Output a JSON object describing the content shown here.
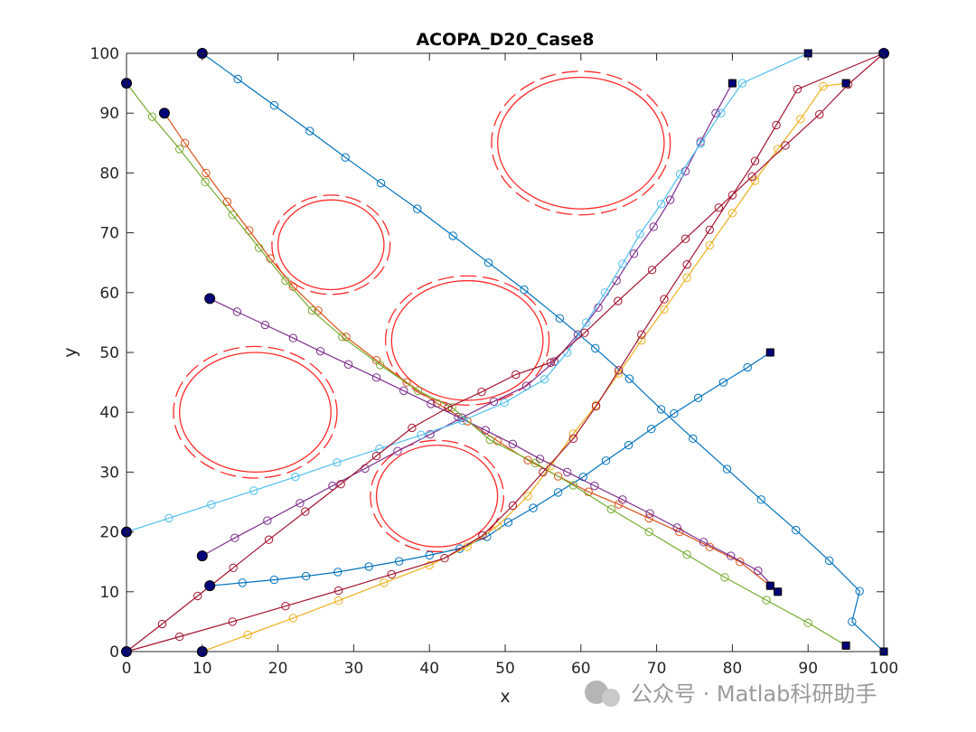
{
  "chart_data": {
    "type": "line",
    "title": "ACOPA_D20_Case8",
    "xlabel": "x",
    "ylabel": "y",
    "xlim": [
      0,
      100
    ],
    "ylim": [
      0,
      100
    ],
    "xticks": [
      0,
      10,
      20,
      30,
      40,
      50,
      60,
      70,
      80,
      90,
      100
    ],
    "yticks": [
      0,
      10,
      20,
      30,
      40,
      50,
      60,
      70,
      80,
      90,
      100
    ],
    "grid": false,
    "start_marker": "filled-circle",
    "end_marker": "filled-square",
    "obstacles": [
      {
        "cx": 60,
        "cy": 85,
        "rx": 11,
        "ry": 11,
        "rx_outer": 11.8,
        "ry_outer": 12
      },
      {
        "cx": 27,
        "cy": 68,
        "rx": 7,
        "ry": 7.5,
        "rx_outer": 7.8,
        "ry_outer": 8.3
      },
      {
        "cx": 45,
        "cy": 52,
        "rx": 10,
        "ry": 10,
        "rx_outer": 10.8,
        "ry_outer": 10.8
      },
      {
        "cx": 17,
        "cy": 40,
        "rx": 10,
        "ry": 10,
        "rx_outer": 10.8,
        "ry_outer": 11
      },
      {
        "cx": 41,
        "cy": 26,
        "rx": 8,
        "ry": 8.5,
        "rx_outer": 8.8,
        "ry_outer": 9.3
      }
    ],
    "obstacle_color": "#ff2a2a",
    "series": [
      {
        "color": "#0072bd",
        "points": [
          [
            10,
            100
          ],
          [
            14.7,
            95.7
          ],
          [
            19.5,
            91.3
          ],
          [
            24.2,
            87
          ],
          [
            28.9,
            82.6
          ],
          [
            33.6,
            78.3
          ],
          [
            38.4,
            74
          ],
          [
            43.1,
            69.5
          ],
          [
            47.8,
            65
          ],
          [
            52.5,
            60.5
          ],
          [
            57.2,
            55.7
          ],
          [
            61.9,
            50.7
          ],
          [
            66.4,
            45.6
          ],
          [
            70.6,
            40.5
          ],
          [
            74.8,
            35.6
          ],
          [
            79.3,
            30.5
          ],
          [
            83.8,
            25.4
          ],
          [
            88.4,
            20.3
          ],
          [
            92.8,
            15.2
          ],
          [
            96.8,
            10.1
          ],
          [
            95.8,
            5
          ],
          [
            100,
            0
          ]
        ]
      },
      {
        "color": "#0072bd",
        "points": [
          [
            11,
            11
          ],
          [
            15.3,
            11.5
          ],
          [
            19.5,
            12
          ],
          [
            23.7,
            12.6
          ],
          [
            27.9,
            13.3
          ],
          [
            32,
            14.2
          ],
          [
            36,
            15.1
          ],
          [
            40,
            16.1
          ],
          [
            44,
            17.2
          ],
          [
            47.6,
            19.2
          ],
          [
            50.4,
            21.6
          ],
          [
            53.7,
            24
          ],
          [
            57,
            26.6
          ],
          [
            60.3,
            29.2
          ],
          [
            63.3,
            31.9
          ],
          [
            66.3,
            34.5
          ],
          [
            69.3,
            37.2
          ],
          [
            72.3,
            39.8
          ],
          [
            75.5,
            42.4
          ],
          [
            78.8,
            45
          ],
          [
            82,
            47.5
          ],
          [
            85,
            50
          ]
        ]
      },
      {
        "color": "#d95319",
        "points": [
          [
            5,
            90
          ],
          [
            7.7,
            85
          ],
          [
            10.5,
            80
          ],
          [
            13.3,
            75.2
          ],
          [
            16.2,
            70.4
          ],
          [
            19,
            65.7
          ],
          [
            22,
            61
          ],
          [
            25.3,
            57
          ],
          [
            29,
            52.6
          ],
          [
            33,
            48.7
          ],
          [
            37,
            45
          ],
          [
            41,
            41.5
          ],
          [
            45,
            38.5
          ],
          [
            49,
            35.2
          ],
          [
            53,
            32
          ],
          [
            57,
            29.3
          ],
          [
            61,
            26.7
          ],
          [
            65,
            24.6
          ],
          [
            69,
            22.3
          ],
          [
            73,
            20
          ],
          [
            77,
            17.5
          ],
          [
            81,
            15
          ],
          [
            85,
            11
          ]
        ]
      },
      {
        "color": "#edb120",
        "points": [
          [
            10,
            0
          ],
          [
            16,
            2.8
          ],
          [
            22,
            5.6
          ],
          [
            28,
            8.5
          ],
          [
            34,
            11.5
          ],
          [
            40,
            14.4
          ],
          [
            45,
            17.5
          ],
          [
            49,
            21
          ],
          [
            53,
            26
          ],
          [
            56,
            31
          ],
          [
            59,
            36.4
          ],
          [
            62,
            41.2
          ],
          [
            65,
            46.5
          ],
          [
            68,
            52
          ],
          [
            71,
            57.2
          ],
          [
            74,
            62.5
          ],
          [
            77,
            67.9
          ],
          [
            80,
            73.3
          ],
          [
            83,
            78.7
          ],
          [
            86,
            84
          ],
          [
            89,
            89
          ],
          [
            92,
            94.5
          ],
          [
            95,
            95
          ]
        ]
      },
      {
        "color": "#7e2f8e",
        "points": [
          [
            11,
            59
          ],
          [
            14.6,
            56.8
          ],
          [
            18.3,
            54.6
          ],
          [
            22,
            52.4
          ],
          [
            25.6,
            50.2
          ],
          [
            29.3,
            48
          ],
          [
            33,
            45.8
          ],
          [
            36.6,
            43.6
          ],
          [
            40.2,
            41.4
          ],
          [
            43.8,
            39.2
          ],
          [
            47.4,
            37
          ],
          [
            51,
            34.7
          ],
          [
            54.6,
            32.2
          ],
          [
            58.2,
            30
          ],
          [
            61.8,
            27.7
          ],
          [
            65.5,
            25.4
          ],
          [
            69.1,
            23.1
          ],
          [
            72.7,
            20.7
          ],
          [
            76.2,
            18.3
          ],
          [
            79.8,
            16
          ],
          [
            83.4,
            13.5
          ],
          [
            86,
            10
          ]
        ]
      },
      {
        "color": "#7e2f8e",
        "points": [
          [
            10,
            16
          ],
          [
            14.3,
            19
          ],
          [
            18.6,
            21.9
          ],
          [
            22.9,
            24.8
          ],
          [
            27.2,
            27.7
          ],
          [
            31.5,
            30.6
          ],
          [
            35.8,
            33.5
          ],
          [
            40.1,
            36.3
          ],
          [
            44.3,
            39.1
          ],
          [
            48.5,
            41.8
          ],
          [
            52.8,
            44.4
          ],
          [
            56.5,
            48.5
          ],
          [
            59.6,
            53
          ],
          [
            62.3,
            57.5
          ],
          [
            64.7,
            62
          ],
          [
            67,
            66.5
          ],
          [
            69.6,
            71
          ],
          [
            71.8,
            75.5
          ],
          [
            73.8,
            80.3
          ],
          [
            75.8,
            85.2
          ],
          [
            77.8,
            90
          ],
          [
            80,
            95
          ]
        ]
      },
      {
        "color": "#77ac30",
        "points": [
          [
            0,
            95
          ],
          [
            3.4,
            89.4
          ],
          [
            7,
            84
          ],
          [
            10.4,
            78.5
          ],
          [
            14,
            73
          ],
          [
            17.5,
            67.5
          ],
          [
            21,
            62
          ],
          [
            24.5,
            57
          ],
          [
            28.5,
            52.6
          ],
          [
            33.5,
            47.9
          ],
          [
            38.5,
            43.6
          ],
          [
            43,
            40.8
          ],
          [
            48,
            35.4
          ],
          [
            54,
            31.5
          ],
          [
            59,
            27.8
          ],
          [
            64,
            23.8
          ],
          [
            69,
            20
          ],
          [
            74,
            16.2
          ],
          [
            79,
            12.4
          ],
          [
            84.5,
            8.6
          ],
          [
            90,
            4.8
          ],
          [
            95,
            1
          ]
        ]
      },
      {
        "color": "#4dbeee",
        "points": [
          [
            0,
            20
          ],
          [
            5.6,
            22.3
          ],
          [
            11.2,
            24.6
          ],
          [
            16.8,
            26.9
          ],
          [
            22.3,
            29.2
          ],
          [
            27.8,
            31.6
          ],
          [
            33.4,
            33.9
          ],
          [
            38.9,
            36.2
          ],
          [
            44.4,
            38.6
          ],
          [
            49.9,
            41.6
          ],
          [
            55.2,
            45.5
          ],
          [
            58.2,
            50
          ],
          [
            60.7,
            55
          ],
          [
            63.2,
            60
          ],
          [
            65.5,
            64.8
          ],
          [
            67.8,
            69.8
          ],
          [
            70.6,
            74.8
          ],
          [
            73.1,
            79.8
          ],
          [
            75.8,
            84.9
          ],
          [
            78.5,
            90
          ],
          [
            81.3,
            95
          ],
          [
            90,
            100
          ]
        ]
      },
      {
        "color": "#a2142f",
        "points": [
          [
            0,
            0
          ],
          [
            4.7,
            4.6
          ],
          [
            9.4,
            9.3
          ],
          [
            14.1,
            14
          ],
          [
            18.8,
            18.7
          ],
          [
            23.6,
            23.4
          ],
          [
            28.3,
            28
          ],
          [
            33,
            32.7
          ],
          [
            37.7,
            37.4
          ],
          [
            42.5,
            40.8
          ],
          [
            46.9,
            43.4
          ],
          [
            51.4,
            46.3
          ],
          [
            56,
            48.3
          ],
          [
            60.5,
            53.3
          ],
          [
            64.9,
            58.6
          ],
          [
            69.4,
            63.8
          ],
          [
            73.8,
            69
          ],
          [
            78.2,
            74.2
          ],
          [
            82.6,
            79.4
          ],
          [
            87,
            84.6
          ],
          [
            91.5,
            89.8
          ],
          [
            95.3,
            94.8
          ],
          [
            100,
            100
          ]
        ]
      },
      {
        "color": "#a2142f",
        "points": [
          [
            0,
            0
          ],
          [
            7,
            2.5
          ],
          [
            14,
            5
          ],
          [
            21,
            7.6
          ],
          [
            28,
            10.2
          ],
          [
            35,
            12.9
          ],
          [
            42,
            15.6
          ],
          [
            47,
            19.4
          ],
          [
            51,
            24.4
          ],
          [
            55,
            30
          ],
          [
            59,
            35.6
          ],
          [
            62,
            41
          ],
          [
            65,
            47
          ],
          [
            68,
            53
          ],
          [
            71,
            58.9
          ],
          [
            74,
            64.7
          ],
          [
            77,
            70.5
          ],
          [
            80,
            76.3
          ],
          [
            83,
            82
          ],
          [
            85.8,
            88
          ],
          [
            88.6,
            94
          ],
          [
            100,
            100
          ]
        ]
      }
    ],
    "starts": [
      [
        10,
        100
      ],
      [
        0,
        95
      ],
      [
        5,
        90
      ],
      [
        11,
        59
      ],
      [
        0,
        20
      ],
      [
        10,
        16
      ],
      [
        11,
        11
      ],
      [
        10,
        0
      ],
      [
        0,
        0
      ],
      [
        100,
        100
      ]
    ],
    "ends": [
      [
        80,
        95
      ],
      [
        90,
        100
      ],
      [
        95,
        95
      ],
      [
        85,
        50
      ],
      [
        85,
        11
      ],
      [
        86,
        10
      ],
      [
        95,
        1
      ],
      [
        100,
        0
      ]
    ]
  },
  "watermark": "公众号 · Matlab科研助手"
}
